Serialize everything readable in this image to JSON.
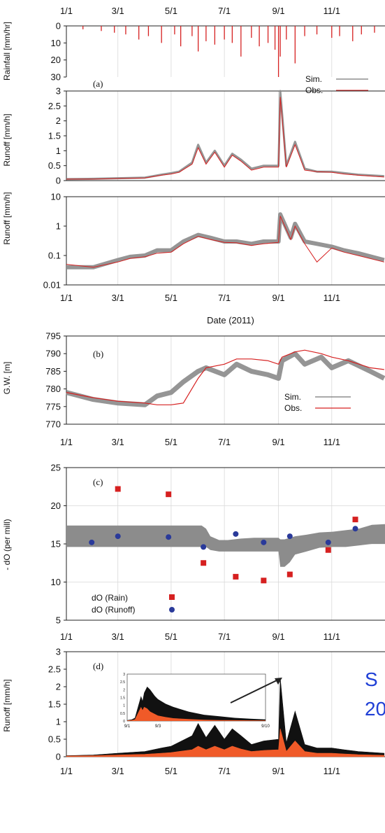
{
  "figure_text": {
    "side_text_line1": "S",
    "side_text_line2": "20"
  },
  "chart_data": [
    {
      "id": "a-rain",
      "panel": "(a)",
      "type": "bar",
      "ylabel": "Rainfall [mm/hr]",
      "ylim": [
        30,
        0
      ],
      "yticks": [
        0,
        10,
        20,
        30
      ],
      "xticks_top": [
        "1/1",
        "3/1",
        "5/1",
        "7/1",
        "9/1",
        "11/1"
      ],
      "color": "#d62020",
      "x": [
        "1/20",
        "2/10",
        "2/25",
        "3/10",
        "3/25",
        "4/5",
        "4/20",
        "5/5",
        "5/12",
        "5/25",
        "6/1",
        "6/10",
        "6/20",
        "7/1",
        "7/10",
        "7/20",
        "8/1",
        "8/10",
        "8/20",
        "8/28",
        "9/1",
        "9/3",
        "9/10",
        "9/20",
        "10/1",
        "10/15",
        "11/1",
        "11/10",
        "11/25",
        "12/5",
        "12/20"
      ],
      "values": [
        2,
        3,
        4,
        5,
        8,
        6,
        10,
        5,
        12,
        6,
        15,
        9,
        11,
        8,
        10,
        18,
        7,
        12,
        10,
        14,
        30,
        18,
        8,
        22,
        6,
        5,
        7,
        6,
        9,
        5,
        4
      ]
    },
    {
      "id": "a-runoff-linear",
      "type": "line",
      "ylabel": "Runoff [mm/h]",
      "ylim": [
        0,
        3
      ],
      "yticks": [
        0,
        0.5,
        1,
        1.5,
        2,
        2.5,
        3
      ],
      "legend": {
        "position": "top-right",
        "entries": [
          "Sim.",
          "Obs."
        ]
      },
      "series": [
        {
          "name": "Sim.",
          "color": "#555555",
          "x": [
            "1/1",
            "2/1",
            "3/1",
            "4/1",
            "4/20",
            "5/1",
            "5/10",
            "5/25",
            "6/1",
            "6/10",
            "6/20",
            "7/1",
            "7/10",
            "7/20",
            "8/1",
            "8/15",
            "9/1",
            "9/3",
            "9/10",
            "9/20",
            "10/1",
            "10/15",
            "11/1",
            "11/15",
            "12/1",
            "12/31"
          ],
          "values": [
            0.05,
            0.06,
            0.08,
            0.1,
            0.2,
            0.25,
            0.3,
            0.6,
            1.2,
            0.6,
            1.0,
            0.5,
            0.9,
            0.7,
            0.4,
            0.5,
            0.5,
            3.0,
            0.5,
            1.3,
            0.4,
            0.3,
            0.3,
            0.25,
            0.2,
            0.15
          ]
        },
        {
          "name": "Obs.",
          "color": "#d62020",
          "x": [
            "1/1",
            "2/1",
            "3/1",
            "4/1",
            "4/20",
            "5/1",
            "5/10",
            "5/25",
            "6/1",
            "6/10",
            "6/20",
            "7/1",
            "7/10",
            "7/20",
            "8/1",
            "8/15",
            "9/1",
            "9/3",
            "9/10",
            "9/20",
            "10/1",
            "10/15",
            "11/1",
            "11/15",
            "12/1",
            "12/31"
          ],
          "values": [
            0.05,
            0.05,
            0.07,
            0.09,
            0.18,
            0.22,
            0.28,
            0.55,
            1.1,
            0.55,
            0.95,
            0.45,
            0.85,
            0.65,
            0.35,
            0.45,
            0.45,
            2.8,
            0.45,
            1.2,
            0.35,
            0.3,
            0.28,
            0.22,
            0.18,
            0.12
          ]
        }
      ]
    },
    {
      "id": "a-runoff-log",
      "type": "line",
      "ylabel": "Runoff [mm/h]",
      "yscale": "log",
      "ylim": [
        0.01,
        10
      ],
      "yticks": [
        0.01,
        0.1,
        1,
        10
      ],
      "ytick_labels": [
        "0.01",
        "0.1",
        "1",
        "10"
      ],
      "xticks": [
        "1/1",
        "3/1",
        "5/1",
        "7/1",
        "9/1",
        "11/1"
      ],
      "xlabel": "Date (2011)",
      "series": [
        {
          "name": "Sim.",
          "color": "#555555",
          "x": [
            "1/1",
            "2/1",
            "3/1",
            "3/15",
            "4/1",
            "4/15",
            "5/1",
            "5/15",
            "6/1",
            "6/15",
            "7/1",
            "7/15",
            "8/1",
            "8/15",
            "9/1",
            "9/3",
            "9/15",
            "9/20",
            "10/1",
            "10/15",
            "11/1",
            "11/15",
            "12/1",
            "12/31"
          ],
          "values": [
            0.04,
            0.04,
            0.07,
            0.09,
            0.1,
            0.15,
            0.15,
            0.3,
            0.5,
            0.4,
            0.3,
            0.3,
            0.25,
            0.3,
            0.3,
            2.5,
            0.4,
            1.2,
            0.3,
            0.25,
            0.2,
            0.15,
            0.12,
            0.07
          ]
        },
        {
          "name": "Obs.",
          "color": "#d62020",
          "x": [
            "1/1",
            "2/1",
            "3/1",
            "3/15",
            "4/1",
            "4/15",
            "5/1",
            "5/15",
            "6/1",
            "6/15",
            "7/1",
            "7/15",
            "8/1",
            "8/15",
            "9/1",
            "9/3",
            "9/15",
            "9/20",
            "10/1",
            "10/15",
            "11/1",
            "11/15",
            "12/1",
            "12/31"
          ],
          "values": [
            0.05,
            0.04,
            0.06,
            0.08,
            0.09,
            0.12,
            0.13,
            0.25,
            0.45,
            0.35,
            0.28,
            0.27,
            0.22,
            0.25,
            0.28,
            2.2,
            0.35,
            1.0,
            0.25,
            0.06,
            0.18,
            0.13,
            0.1,
            0.06
          ]
        }
      ]
    },
    {
      "id": "b-gw",
      "panel": "(b)",
      "type": "line",
      "ylabel": "G.W. [m]",
      "ylim": [
        770,
        795
      ],
      "yticks": [
        770,
        775,
        780,
        785,
        790,
        795
      ],
      "xticks": [
        "1/1",
        "3/1",
        "5/1",
        "7/1",
        "9/1",
        "11/1"
      ],
      "legend": {
        "position": "bottom-right",
        "entries": [
          "Sim.",
          "Obs."
        ]
      },
      "series": [
        {
          "name": "Sim.",
          "color": "#555555",
          "x": [
            "1/1",
            "2/1",
            "3/1",
            "4/1",
            "4/15",
            "5/1",
            "5/15",
            "6/1",
            "6/10",
            "7/1",
            "7/15",
            "8/1",
            "8/20",
            "9/1",
            "9/5",
            "9/20",
            "10/1",
            "10/20",
            "11/1",
            "11/20",
            "12/15",
            "12/31"
          ],
          "values": [
            779,
            777,
            776,
            775.5,
            778,
            779,
            782,
            785,
            786,
            784,
            787,
            785,
            784,
            783,
            788,
            790,
            787,
            789,
            786,
            788,
            785,
            783
          ]
        },
        {
          "name": "Obs.",
          "color": "#d62020",
          "x": [
            "1/1",
            "2/1",
            "3/1",
            "4/1",
            "4/15",
            "5/1",
            "5/15",
            "6/1",
            "6/10",
            "7/1",
            "7/15",
            "8/1",
            "8/20",
            "9/1",
            "9/5",
            "9/20",
            "10/1",
            "10/20",
            "11/1",
            "11/20",
            "12/15",
            "12/31"
          ],
          "values": [
            779,
            777.5,
            776.5,
            776,
            775.5,
            775.5,
            776,
            783,
            786,
            787,
            788.5,
            788.5,
            788,
            787,
            789,
            790.5,
            791,
            790,
            789,
            788,
            786,
            785.5
          ]
        }
      ]
    },
    {
      "id": "c-isotope",
      "panel": "(c)",
      "type": "scatter",
      "ylabel": "- dO (per mill)",
      "ylim": [
        5,
        25
      ],
      "yticks": [
        5,
        10,
        15,
        20,
        25
      ],
      "xticks": [
        "1/1",
        "3/1",
        "5/1",
        "7/1",
        "9/1",
        "11/1"
      ],
      "legend": {
        "position": "bottom-left",
        "entries": [
          "dO (Rain)",
          "dO (Runoff)"
        ]
      },
      "series": [
        {
          "name": "dO (Rain)",
          "color": "#d62020",
          "marker": "square",
          "x": [
            "3/1",
            "4/28",
            "6/7",
            "7/14",
            "8/15",
            "9/14",
            "10/28",
            "11/28"
          ],
          "values": [
            22.2,
            21.5,
            12.5,
            10.7,
            10.2,
            11,
            14.2,
            18.2
          ]
        },
        {
          "name": "dO (Runoff)",
          "color": "#2a3a9a",
          "marker": "circle",
          "x": [
            "1/30",
            "3/1",
            "4/28",
            "6/7",
            "7/14",
            "8/15",
            "9/14",
            "10/28",
            "11/28"
          ],
          "values": [
            15.2,
            16,
            15.9,
            14.6,
            16.3,
            15.2,
            16,
            15.2,
            17
          ]
        }
      ]
    },
    {
      "id": "d-runoff",
      "panel": "(d)",
      "type": "area",
      "ylabel": "Runoff [mm/h]",
      "ylim": [
        0,
        3
      ],
      "yticks": [
        0,
        0.5,
        1,
        1.5,
        2,
        2.5,
        3
      ],
      "xticks": [
        "1/1",
        "3/1",
        "5/1",
        "7/1",
        "9/1",
        "11/1"
      ],
      "x": [
        "1/1",
        "2/1",
        "3/1",
        "4/1",
        "4/20",
        "5/1",
        "5/25",
        "6/1",
        "6/10",
        "6/20",
        "7/1",
        "7/10",
        "7/20",
        "8/1",
        "8/15",
        "9/1",
        "9/3",
        "9/10",
        "9/20",
        "10/1",
        "10/15",
        "11/1",
        "11/15",
        "12/1",
        "12/31"
      ],
      "series": [
        {
          "color": "#111111",
          "values": [
            0.03,
            0.05,
            0.1,
            0.15,
            0.25,
            0.3,
            0.6,
            0.95,
            0.55,
            0.9,
            0.5,
            0.8,
            0.6,
            0.35,
            0.45,
            0.5,
            2.25,
            0.4,
            1.3,
            0.35,
            0.25,
            0.25,
            0.2,
            0.15,
            0.1
          ]
        },
        {
          "color": "#f05a28",
          "values": [
            0.02,
            0.03,
            0.05,
            0.07,
            0.1,
            0.12,
            0.2,
            0.3,
            0.2,
            0.3,
            0.2,
            0.3,
            0.22,
            0.15,
            0.18,
            0.2,
            0.8,
            0.15,
            0.45,
            0.15,
            0.1,
            0.1,
            0.08,
            0.06,
            0.04
          ]
        }
      ],
      "inset": {
        "xticks": [
          "9/1",
          "9/3",
          "9/10"
        ],
        "yticks": [
          0,
          0.5,
          1,
          1.5,
          2,
          2.5,
          3
        ],
        "ylim": [
          0,
          3
        ],
        "x": [
          1.0,
          1.3,
          1.5,
          1.7,
          1.9,
          2.0,
          2.1,
          2.3,
          2.5,
          2.8,
          3.0,
          3.5,
          4.0,
          5.0,
          6.0,
          7.0,
          8.0,
          9.0,
          10.0
        ],
        "series": [
          {
            "color": "#111111",
            "values": [
              0.05,
              0.1,
              0.2,
              0.9,
              1.6,
              1.3,
              1.8,
              2.2,
              2.0,
              1.6,
              1.4,
              1.1,
              0.9,
              0.6,
              0.4,
              0.3,
              0.2,
              0.15,
              0.1
            ]
          },
          {
            "color": "#f05a28",
            "values": [
              0.03,
              0.06,
              0.1,
              0.5,
              0.9,
              0.7,
              0.9,
              0.8,
              0.6,
              0.45,
              0.35,
              0.25,
              0.18,
              0.12,
              0.08,
              0.06,
              0.05,
              0.04,
              0.03
            ]
          }
        ]
      }
    }
  ]
}
